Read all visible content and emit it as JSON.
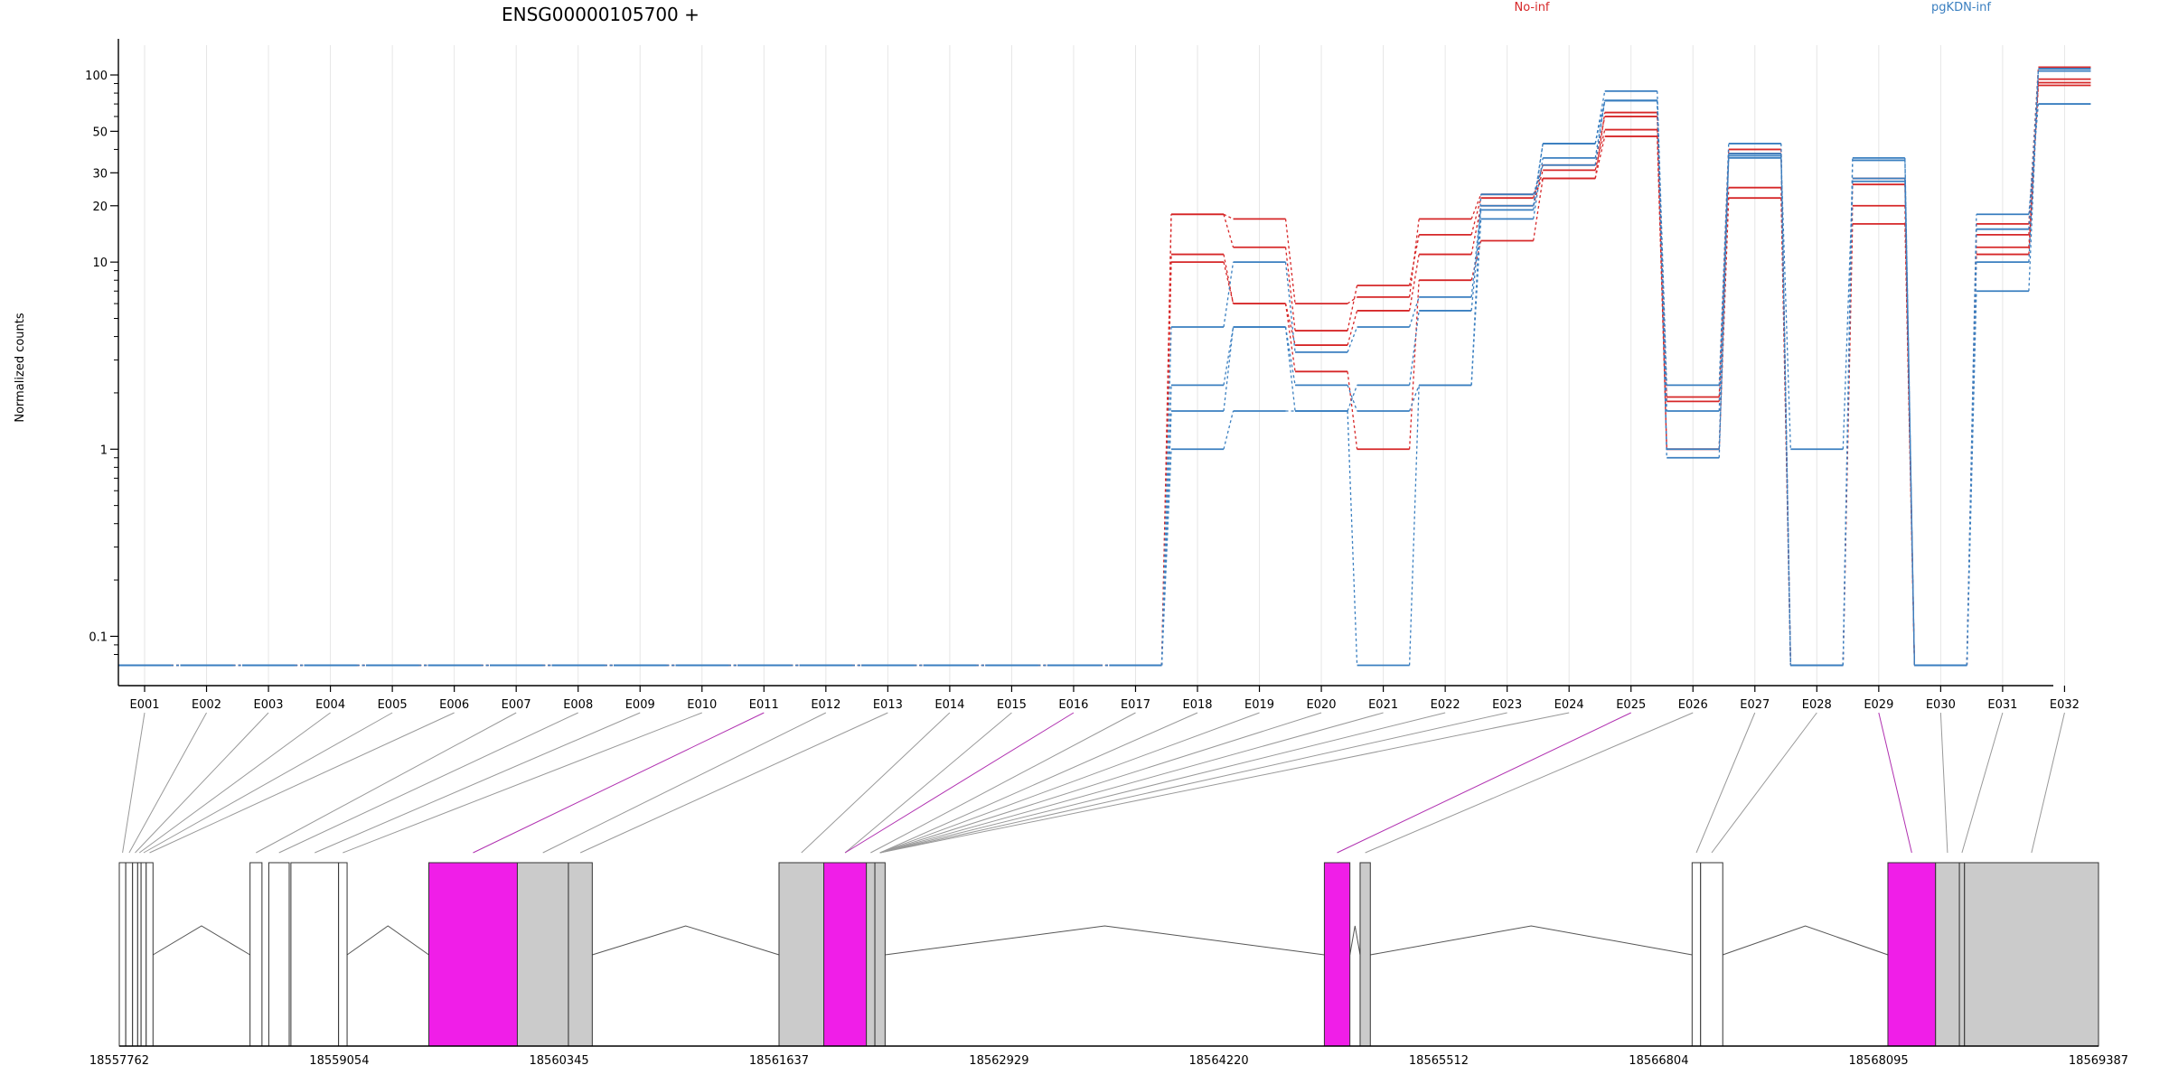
{
  "chart_data": {
    "type": "line",
    "title": "ENSG00000105700 +",
    "ylabel": "Normalized counts",
    "y_scale": "log",
    "y_ticks": [
      0.1,
      1,
      10,
      20,
      30,
      50,
      100
    ],
    "y_tick_labels": [
      "0.1",
      "1",
      "10",
      "20",
      "30",
      "50",
      "100"
    ],
    "categories": [
      "E001",
      "E002",
      "E003",
      "E004",
      "E005",
      "E006",
      "E007",
      "E008",
      "E009",
      "E010",
      "E011",
      "E012",
      "E013",
      "E014",
      "E015",
      "E016",
      "E017",
      "E018",
      "E019",
      "E020",
      "E021",
      "E022",
      "E023",
      "E024",
      "E025",
      "E026",
      "E027",
      "E028",
      "E029",
      "E030",
      "E031",
      "E032"
    ],
    "groups": [
      {
        "label": "No-inf",
        "color": "#d62728"
      },
      {
        "label": "pgKDN-inf",
        "color": "#3a7fc0"
      }
    ],
    "series": [
      {
        "group": "No-inf",
        "values": [
          0.07,
          0.07,
          0.07,
          0.07,
          0.07,
          0.07,
          0.07,
          0.07,
          0.07,
          0.07,
          0.07,
          0.07,
          0.07,
          0.07,
          0.07,
          0.07,
          0.07,
          18,
          17,
          6,
          6.5,
          17,
          23,
          28,
          63,
          1.9,
          40,
          0.07,
          28,
          0.07,
          16,
          110
        ]
      },
      {
        "group": "No-inf",
        "values": [
          0.07,
          0.07,
          0.07,
          0.07,
          0.07,
          0.07,
          0.07,
          0.07,
          0.07,
          0.07,
          0.07,
          0.07,
          0.07,
          0.07,
          0.07,
          0.07,
          0.07,
          18,
          12,
          4.3,
          7.5,
          14,
          22,
          33,
          60,
          1.8,
          38,
          0.07,
          26,
          0.07,
          14,
          95
        ]
      },
      {
        "group": "No-inf",
        "values": [
          0.07,
          0.07,
          0.07,
          0.07,
          0.07,
          0.07,
          0.07,
          0.07,
          0.07,
          0.07,
          0.07,
          0.07,
          0.07,
          0.07,
          0.07,
          0.07,
          0.07,
          11,
          6,
          3.6,
          5.5,
          11,
          20,
          31,
          51,
          1.0,
          25,
          0.07,
          20,
          0.07,
          12,
          91
        ]
      },
      {
        "group": "No-inf",
        "values": [
          0.07,
          0.07,
          0.07,
          0.07,
          0.07,
          0.07,
          0.07,
          0.07,
          0.07,
          0.07,
          0.07,
          0.07,
          0.07,
          0.07,
          0.07,
          0.07,
          0.07,
          10,
          6,
          2.6,
          1.0,
          8,
          13,
          28,
          47,
          1.0,
          22,
          0.07,
          16,
          0.07,
          11,
          88
        ]
      },
      {
        "group": "pgKDN-inf",
        "values": [
          0.07,
          0.07,
          0.07,
          0.07,
          0.07,
          0.07,
          0.07,
          0.07,
          0.07,
          0.07,
          0.07,
          0.07,
          0.07,
          0.07,
          0.07,
          0.07,
          0.07,
          4.5,
          10,
          3.3,
          4.5,
          6.5,
          20,
          43,
          82,
          2.2,
          43,
          0.07,
          36,
          0.07,
          18,
          70
        ]
      },
      {
        "group": "pgKDN-inf",
        "values": [
          0.07,
          0.07,
          0.07,
          0.07,
          0.07,
          0.07,
          0.07,
          0.07,
          0.07,
          0.07,
          0.07,
          0.07,
          0.07,
          0.07,
          0.07,
          0.07,
          0.07,
          2.2,
          4.5,
          1.6,
          2.2,
          5.5,
          19,
          43,
          73,
          1.6,
          38,
          0.07,
          35,
          0.07,
          15,
          105
        ]
      },
      {
        "group": "pgKDN-inf",
        "values": [
          0.07,
          0.07,
          0.07,
          0.07,
          0.07,
          0.07,
          0.07,
          0.07,
          0.07,
          0.07,
          0.07,
          0.07,
          0.07,
          0.07,
          0.07,
          0.07,
          0.07,
          1.6,
          4.5,
          2.2,
          1.6,
          2.2,
          17,
          36,
          73,
          1.0,
          36,
          1.0,
          27,
          0.07,
          10,
          105
        ]
      },
      {
        "group": "pgKDN-inf",
        "values": [
          0.07,
          0.07,
          0.07,
          0.07,
          0.07,
          0.07,
          0.07,
          0.07,
          0.07,
          0.07,
          0.07,
          0.07,
          0.07,
          0.07,
          0.07,
          0.07,
          0.07,
          1.0,
          1.6,
          1.6,
          0.07,
          2.2,
          23,
          33,
          73,
          0.9,
          37,
          0.07,
          28,
          0.07,
          7,
          108
        ]
      }
    ],
    "gene_model": {
      "genomic_range": [
        18557762,
        18569387
      ],
      "coordinate_ticks": [
        18557762,
        18559054,
        18560345,
        18561637,
        18562929,
        18564220,
        18565512,
        18566804,
        18568095,
        18569387
      ],
      "highlight_color": "#f01ee8",
      "exon_color": "#cbcbcb",
      "highlighted_exons": [
        "E011",
        "E016",
        "E025",
        "E029"
      ],
      "exon_bins": [
        {
          "id": "E001",
          "start": 18557762,
          "end": 18557800
        },
        {
          "id": "E002",
          "start": 18557800,
          "end": 18557840
        },
        {
          "id": "E003",
          "start": 18557840,
          "end": 18557870
        },
        {
          "id": "E004",
          "start": 18557870,
          "end": 18557890
        },
        {
          "id": "E005",
          "start": 18557890,
          "end": 18557920
        },
        {
          "id": "E006",
          "start": 18557920,
          "end": 18557960
        },
        {
          "id": "E007",
          "start": 18558530,
          "end": 18558600
        },
        {
          "id": "E008",
          "start": 18558640,
          "end": 18558760
        },
        {
          "id": "E009",
          "start": 18558770,
          "end": 18559050
        },
        {
          "id": "E010",
          "start": 18559050,
          "end": 18559100
        },
        {
          "id": "E011",
          "start": 18559580,
          "end": 18560100
        },
        {
          "id": "E012",
          "start": 18560100,
          "end": 18560400
        },
        {
          "id": "E013",
          "start": 18560400,
          "end": 18560540
        },
        {
          "id": "E014",
          "start": 18561637,
          "end": 18561900
        },
        {
          "id": "E015",
          "start": 18561900,
          "end": 18562150
        },
        {
          "id": "E016",
          "start": 18561900,
          "end": 18562150
        },
        {
          "id": "E017",
          "start": 18562150,
          "end": 18562200
        },
        {
          "id": "E018",
          "start": 18562200,
          "end": 18562260
        },
        {
          "id": "E019",
          "start": 18562200,
          "end": 18562260
        },
        {
          "id": "E020",
          "start": 18562200,
          "end": 18562260
        },
        {
          "id": "E021",
          "start": 18562200,
          "end": 18562260
        },
        {
          "id": "E022",
          "start": 18562200,
          "end": 18562260
        },
        {
          "id": "E023",
          "start": 18562200,
          "end": 18562260
        },
        {
          "id": "E024",
          "start": 18562200,
          "end": 18562260
        },
        {
          "id": "E025",
          "start": 18564840,
          "end": 18564990
        },
        {
          "id": "E026",
          "start": 18565050,
          "end": 18565110
        },
        {
          "id": "E027",
          "start": 18567000,
          "end": 18567050
        },
        {
          "id": "E028",
          "start": 18567050,
          "end": 18567180
        },
        {
          "id": "E029",
          "start": 18568150,
          "end": 18568430
        },
        {
          "id": "E030",
          "start": 18568430,
          "end": 18568570
        },
        {
          "id": "E031",
          "start": 18568570,
          "end": 18568600
        },
        {
          "id": "E032",
          "start": 18568600,
          "end": 18569387
        }
      ]
    }
  }
}
